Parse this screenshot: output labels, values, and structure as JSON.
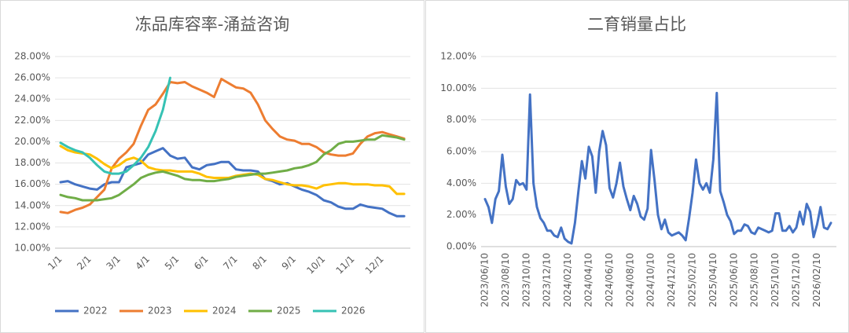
{
  "chart_data": [
    {
      "type": "line",
      "title": "冻品库容率-涌益咨询",
      "categories": [
        "1/1",
        null,
        null,
        null,
        "2/1",
        null,
        null,
        null,
        "3/1",
        null,
        null,
        null,
        "4/1",
        null,
        null,
        null,
        "5/1",
        null,
        null,
        null,
        "6/1",
        null,
        null,
        null,
        "7/1",
        null,
        null,
        null,
        "8/1",
        null,
        null,
        null,
        "9/1",
        null,
        null,
        null,
        "10/1",
        null,
        null,
        null,
        "11/1",
        null,
        null,
        null,
        "12/1",
        null,
        null,
        null
      ],
      "series": [
        {
          "name": "2022",
          "color": "#4472c4",
          "values": [
            16.2,
            16.3,
            16.0,
            15.8,
            15.6,
            15.5,
            16.0,
            16.2,
            16.2,
            17.6,
            17.8,
            18.0,
            18.8,
            19.1,
            19.4,
            18.7,
            18.4,
            18.5,
            17.6,
            17.4,
            17.8,
            17.9,
            18.1,
            18.1,
            17.4,
            17.3,
            17.3,
            17.2,
            16.5,
            16.3,
            16.0,
            16.1,
            15.8,
            15.5,
            15.3,
            15.0,
            14.5,
            14.3,
            13.9,
            13.7,
            13.7,
            14.1,
            13.9,
            13.8,
            13.7,
            13.3,
            13.0,
            13.0
          ]
        },
        {
          "name": "2023",
          "color": "#ed7d31",
          "values": [
            13.4,
            13.3,
            13.6,
            13.8,
            14.1,
            14.8,
            15.5,
            17.5,
            18.4,
            19.0,
            19.8,
            21.5,
            23.0,
            23.5,
            24.5,
            25.6,
            25.5,
            25.6,
            25.2,
            24.9,
            24.6,
            24.2,
            25.9,
            25.5,
            25.1,
            25.0,
            24.6,
            23.5,
            22.0,
            21.2,
            20.5,
            20.2,
            20.1,
            19.8,
            19.8,
            19.5,
            19.0,
            18.8,
            18.7,
            18.7,
            18.9,
            19.8,
            20.5,
            20.8,
            20.9,
            20.7,
            20.5,
            20.3
          ]
        },
        {
          "name": "2024",
          "color": "#ffc000",
          "values": [
            19.6,
            19.2,
            19.0,
            18.9,
            18.8,
            18.4,
            17.9,
            17.5,
            17.8,
            18.3,
            18.5,
            18.2,
            17.6,
            17.4,
            17.3,
            17.3,
            17.2,
            17.2,
            17.2,
            17.0,
            16.7,
            16.6,
            16.6,
            16.6,
            16.8,
            16.9,
            17.0,
            16.9,
            16.5,
            16.4,
            16.2,
            16.0,
            15.9,
            15.9,
            15.8,
            15.6,
            15.9,
            16.0,
            16.1,
            16.1,
            16.0,
            16.0,
            16.0,
            15.9,
            15.9,
            15.8,
            15.1,
            15.1
          ]
        },
        {
          "name": "2025",
          "color": "#70ad47",
          "values": [
            15.0,
            14.8,
            14.7,
            14.5,
            14.5,
            14.5,
            14.6,
            14.7,
            15.0,
            15.5,
            16.0,
            16.6,
            16.9,
            17.1,
            17.2,
            17.0,
            16.8,
            16.5,
            16.4,
            16.4,
            16.3,
            16.3,
            16.4,
            16.5,
            16.7,
            16.8,
            16.9,
            17.0,
            17.0,
            17.1,
            17.2,
            17.3,
            17.5,
            17.6,
            17.8,
            18.1,
            18.8,
            19.2,
            19.8,
            20.0,
            20.0,
            20.1,
            20.2,
            20.2,
            20.6,
            20.5,
            20.4,
            20.2
          ]
        },
        {
          "name": "2026",
          "color": "#36c2b4",
          "values": [
            19.9,
            19.5,
            19.2,
            19.0,
            18.5,
            17.8,
            17.2,
            17.0,
            17.0,
            17.2,
            17.8,
            18.5,
            19.5,
            21.0,
            23.0,
            26.0,
            null,
            null,
            null,
            null,
            null,
            null,
            null,
            null,
            null,
            null,
            null,
            null,
            null,
            null,
            null,
            null,
            null,
            null,
            null,
            null,
            null,
            null,
            null,
            null,
            null,
            null,
            null,
            null,
            null,
            null,
            null,
            null
          ]
        }
      ],
      "ylim": [
        10,
        28
      ],
      "yticks": [
        {
          "value": 10,
          "label": "10.00%"
        },
        {
          "value": 12,
          "label": "12.00%"
        },
        {
          "value": 14,
          "label": "14.00%"
        },
        {
          "value": 16,
          "label": "16.00%"
        },
        {
          "value": 18,
          "label": "18.00%"
        },
        {
          "value": 20,
          "label": "20.00%"
        },
        {
          "value": 22,
          "label": "22.00%"
        },
        {
          "value": 24,
          "label": "24.00%"
        },
        {
          "value": 26,
          "label": "26.00%"
        },
        {
          "value": 28,
          "label": "28.00%"
        }
      ],
      "grid": true,
      "legend": "bottom"
    },
    {
      "type": "line",
      "title": "二育销量占比",
      "categories": [
        "2023/06/10",
        null,
        null,
        null,
        null,
        null,
        "2023/08/10",
        null,
        null,
        null,
        null,
        null,
        "2023/10/10",
        null,
        null,
        null,
        null,
        null,
        "2023/12/10",
        null,
        null,
        null,
        null,
        null,
        "2024/02/10",
        null,
        null,
        null,
        null,
        null,
        "2024/04/10",
        null,
        null,
        null,
        null,
        null,
        "2024/06/10",
        null,
        null,
        null,
        null,
        null,
        "2024/08/10",
        null,
        null,
        null,
        null,
        null,
        "2024/10/10",
        null,
        null,
        null,
        null,
        null,
        "2024/12/10",
        null,
        null,
        null,
        null,
        null,
        "2025/02/10",
        null,
        null,
        null,
        null,
        null,
        "2025/04/10",
        null,
        null,
        null,
        null,
        null,
        "2025/06/10",
        null,
        null,
        null,
        null,
        null,
        "2025/08/10",
        null,
        null,
        null,
        null,
        null,
        "2025/10/10",
        null,
        null,
        null,
        null,
        null,
        "2025/12/10",
        null,
        null,
        null,
        null,
        null,
        "2026/02/10",
        null,
        null,
        null,
        null
      ],
      "series": [
        {
          "color": "#4472c4",
          "values": [
            3.0,
            2.5,
            1.5,
            3.0,
            3.5,
            5.8,
            3.8,
            2.7,
            3.0,
            4.2,
            3.9,
            4.0,
            3.6,
            9.6,
            4.0,
            2.5,
            1.8,
            1.5,
            1.0,
            1.0,
            0.7,
            0.6,
            1.2,
            0.5,
            0.3,
            0.2,
            1.5,
            3.5,
            5.4,
            4.3,
            6.3,
            5.7,
            3.4,
            6.0,
            7.3,
            6.4,
            3.7,
            3.1,
            4.0,
            5.3,
            3.8,
            3.0,
            2.3,
            3.2,
            2.7,
            1.9,
            1.7,
            2.4,
            6.1,
            4.2,
            2.0,
            1.1,
            1.7,
            0.9,
            0.7,
            0.8,
            0.9,
            0.7,
            0.4,
            1.8,
            3.4,
            5.5,
            4.0,
            3.6,
            4.0,
            3.4,
            5.5,
            9.7,
            3.5,
            2.8,
            2.0,
            1.6,
            0.8,
            1.0,
            1.0,
            1.4,
            1.3,
            0.9,
            0.8,
            1.2,
            1.1,
            1.0,
            0.9,
            1.0,
            2.1,
            2.1,
            1.0,
            1.0,
            1.3,
            0.9,
            1.2,
            2.2,
            1.4,
            2.7,
            2.2,
            0.6,
            1.4,
            2.5,
            1.2,
            1.1,
            1.5
          ]
        }
      ],
      "ylim": [
        0,
        12
      ],
      "yticks": [
        {
          "value": 0,
          "label": "0.00%"
        },
        {
          "value": 2,
          "label": "2.00%"
        },
        {
          "value": 4,
          "label": "4.00%"
        },
        {
          "value": 6,
          "label": "6.00%"
        },
        {
          "value": 8,
          "label": "8.00%"
        },
        {
          "value": 10,
          "label": "10.00%"
        },
        {
          "value": 12,
          "label": "12.00%"
        }
      ],
      "grid": true
    }
  ]
}
